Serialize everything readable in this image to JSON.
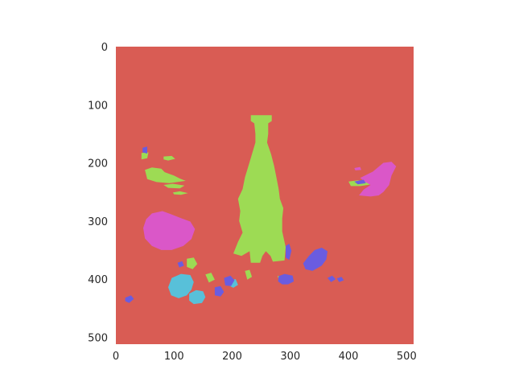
{
  "chart_data": {
    "type": "heatmap",
    "title": "",
    "xlabel": "",
    "ylabel": "",
    "xlim": [
      0,
      512
    ],
    "ylim": [
      512,
      0
    ],
    "grid": false,
    "x_ticks": [
      0,
      100,
      200,
      300,
      400,
      500
    ],
    "y_ticks": [
      0,
      100,
      200,
      300,
      400,
      500
    ],
    "x_tick_labels": [
      "0",
      "100",
      "200",
      "300",
      "400",
      "500"
    ],
    "y_tick_labels": [
      "0",
      "100",
      "200",
      "300",
      "400",
      "500"
    ],
    "background_class_color": "#d95c54",
    "class_colors": [
      "#d95c54",
      "#9ddb54",
      "#58c0d9",
      "#6a5ce0",
      "#da57c8"
    ],
    "regions": [
      {
        "color": "#9ddb54",
        "points": [
          [
            232,
            118
          ],
          [
            268,
            118
          ],
          [
            268,
            128
          ],
          [
            262,
            132
          ],
          [
            262,
            150
          ],
          [
            260,
            165
          ],
          [
            267,
            185
          ],
          [
            272,
            205
          ],
          [
            276,
            225
          ],
          [
            280,
            245
          ],
          [
            282,
            262
          ],
          [
            288,
            278
          ],
          [
            286,
            296
          ],
          [
            286,
            318
          ],
          [
            292,
            345
          ],
          [
            290,
            368
          ],
          [
            270,
            370
          ],
          [
            266,
            360
          ],
          [
            258,
            352
          ],
          [
            252,
            360
          ],
          [
            248,
            372
          ],
          [
            232,
            372
          ],
          [
            230,
            352
          ],
          [
            216,
            360
          ],
          [
            202,
            356
          ],
          [
            210,
            336
          ],
          [
            218,
            320
          ],
          [
            212,
            300
          ],
          [
            214,
            283
          ],
          [
            210,
            262
          ],
          [
            218,
            245
          ],
          [
            222,
            225
          ],
          [
            228,
            205
          ],
          [
            234,
            185
          ],
          [
            240,
            165
          ],
          [
            240,
            150
          ],
          [
            238,
            132
          ],
          [
            232,
            128
          ]
        ]
      },
      {
        "color": "#9ddb54",
        "points": [
          [
            50,
            212
          ],
          [
            62,
            208
          ],
          [
            78,
            210
          ],
          [
            84,
            216
          ],
          [
            100,
            222
          ],
          [
            110,
            227
          ],
          [
            120,
            231
          ],
          [
            92,
            235
          ],
          [
            70,
            233
          ],
          [
            54,
            228
          ]
        ]
      },
      {
        "color": "#9ddb54",
        "points": [
          [
            82,
            238
          ],
          [
            98,
            236
          ],
          [
            118,
            239
          ],
          [
            110,
            244
          ],
          [
            90,
            243
          ]
        ]
      },
      {
        "color": "#9ddb54",
        "points": [
          [
            98,
            251
          ],
          [
            110,
            249
          ],
          [
            124,
            252
          ],
          [
            112,
            255
          ],
          [
            100,
            254
          ]
        ]
      },
      {
        "color": "#9ddb54",
        "points": [
          [
            44,
            183
          ],
          [
            56,
            182
          ],
          [
            54,
            192
          ],
          [
            44,
            194
          ]
        ]
      },
      {
        "color": "#9ddb54",
        "points": [
          [
            82,
            189
          ],
          [
            96,
            188
          ],
          [
            102,
            193
          ],
          [
            90,
            196
          ],
          [
            82,
            194
          ]
        ]
      },
      {
        "color": "#9ddb54",
        "points": [
          [
            400,
            232
          ],
          [
            416,
            230
          ],
          [
            436,
            233
          ],
          [
            440,
            237
          ],
          [
            420,
            240
          ],
          [
            404,
            240
          ]
        ]
      },
      {
        "color": "#9ddb54",
        "points": [
          [
            122,
            365
          ],
          [
            134,
            363
          ],
          [
            140,
            374
          ],
          [
            132,
            383
          ],
          [
            122,
            379
          ]
        ]
      },
      {
        "color": "#9ddb54",
        "points": [
          [
            278,
            395
          ],
          [
            294,
            393
          ],
          [
            300,
            400
          ],
          [
            294,
            405
          ],
          [
            282,
            404
          ]
        ]
      },
      {
        "color": "#9ddb54",
        "points": [
          [
            222,
            386
          ],
          [
            230,
            384
          ],
          [
            234,
            396
          ],
          [
            226,
            401
          ]
        ]
      },
      {
        "color": "#9ddb54",
        "points": [
          [
            154,
            392
          ],
          [
            164,
            389
          ],
          [
            170,
            401
          ],
          [
            160,
            406
          ]
        ]
      },
      {
        "color": "#da57c8",
        "points": [
          [
            52,
            297
          ],
          [
            62,
            287
          ],
          [
            80,
            283
          ],
          [
            94,
            288
          ],
          [
            112,
            295
          ],
          [
            128,
            301
          ],
          [
            136,
            314
          ],
          [
            130,
            331
          ],
          [
            116,
            343
          ],
          [
            96,
            350
          ],
          [
            78,
            350
          ],
          [
            62,
            343
          ],
          [
            50,
            330
          ],
          [
            47,
            312
          ]
        ]
      },
      {
        "color": "#da57c8",
        "points": [
          [
            420,
            226
          ],
          [
            442,
            215
          ],
          [
            460,
            200
          ],
          [
            474,
            198
          ],
          [
            482,
            206
          ],
          [
            474,
            222
          ],
          [
            470,
            238
          ],
          [
            460,
            250
          ],
          [
            452,
            256
          ],
          [
            438,
            258
          ],
          [
            418,
            256
          ],
          [
            426,
            246
          ],
          [
            438,
            238
          ],
          [
            428,
            232
          ]
        ]
      },
      {
        "color": "#58c0d9",
        "points": [
          [
            96,
            398
          ],
          [
            112,
            391
          ],
          [
            128,
            393
          ],
          [
            134,
            405
          ],
          [
            130,
            418
          ],
          [
            122,
            428
          ],
          [
            108,
            433
          ],
          [
            95,
            428
          ],
          [
            90,
            414
          ]
        ]
      },
      {
        "color": "#58c0d9",
        "points": [
          [
            126,
            425
          ],
          [
            138,
            419
          ],
          [
            150,
            421
          ],
          [
            154,
            431
          ],
          [
            148,
            441
          ],
          [
            134,
            443
          ],
          [
            126,
            437
          ]
        ]
      },
      {
        "color": "#58c0d9",
        "points": [
          [
            196,
            402
          ],
          [
            206,
            400
          ],
          [
            210,
            410
          ],
          [
            202,
            415
          ],
          [
            196,
            412
          ]
        ]
      },
      {
        "color": "#6a5ce0",
        "points": [
          [
            332,
            360
          ],
          [
            342,
            350
          ],
          [
            354,
            346
          ],
          [
            364,
            352
          ],
          [
            362,
            366
          ],
          [
            354,
            377
          ],
          [
            338,
            386
          ],
          [
            326,
            383
          ],
          [
            322,
            373
          ]
        ]
      },
      {
        "color": "#6a5ce0",
        "points": [
          [
            280,
            395
          ],
          [
            290,
            391
          ],
          [
            304,
            394
          ],
          [
            306,
            404
          ],
          [
            296,
            409
          ],
          [
            286,
            409
          ],
          [
            279,
            404
          ]
        ]
      },
      {
        "color": "#6a5ce0",
        "points": [
          [
            186,
            398
          ],
          [
            197,
            394
          ],
          [
            204,
            402
          ],
          [
            198,
            412
          ],
          [
            188,
            411
          ]
        ]
      },
      {
        "color": "#6a5ce0",
        "points": [
          [
            170,
            414
          ],
          [
            180,
            412
          ],
          [
            186,
            422
          ],
          [
            180,
            430
          ],
          [
            170,
            428
          ]
        ]
      },
      {
        "color": "#6a5ce0",
        "points": [
          [
            292,
            343
          ],
          [
            298,
            339
          ],
          [
            302,
            351
          ],
          [
            298,
            367
          ],
          [
            292,
            363
          ]
        ]
      },
      {
        "color": "#6a5ce0",
        "points": [
          [
            16,
            432
          ],
          [
            26,
            428
          ],
          [
            31,
            434
          ],
          [
            23,
            441
          ],
          [
            16,
            438
          ]
        ]
      },
      {
        "color": "#6a5ce0",
        "points": [
          [
            106,
            372
          ],
          [
            114,
            369
          ],
          [
            117,
            377
          ],
          [
            109,
            380
          ]
        ]
      },
      {
        "color": "#6a5ce0",
        "points": [
          [
            364,
            398
          ],
          [
            372,
            394
          ],
          [
            378,
            400
          ],
          [
            370,
            405
          ]
        ]
      },
      {
        "color": "#6a5ce0",
        "points": [
          [
            380,
            399
          ],
          [
            388,
            396
          ],
          [
            392,
            402
          ],
          [
            384,
            405
          ]
        ]
      },
      {
        "color": "#6a5ce0",
        "points": [
          [
            410,
            232
          ],
          [
            426,
            229
          ],
          [
            430,
            235
          ],
          [
            416,
            237
          ]
        ]
      },
      {
        "color": "#6a5ce0",
        "points": [
          [
            46,
            174
          ],
          [
            54,
            172
          ],
          [
            54,
            184
          ],
          [
            46,
            182
          ]
        ]
      },
      {
        "color": "#da57c8",
        "points": [
          [
            410,
            209
          ],
          [
            420,
            207
          ],
          [
            422,
            212
          ],
          [
            412,
            213
          ]
        ]
      }
    ]
  }
}
